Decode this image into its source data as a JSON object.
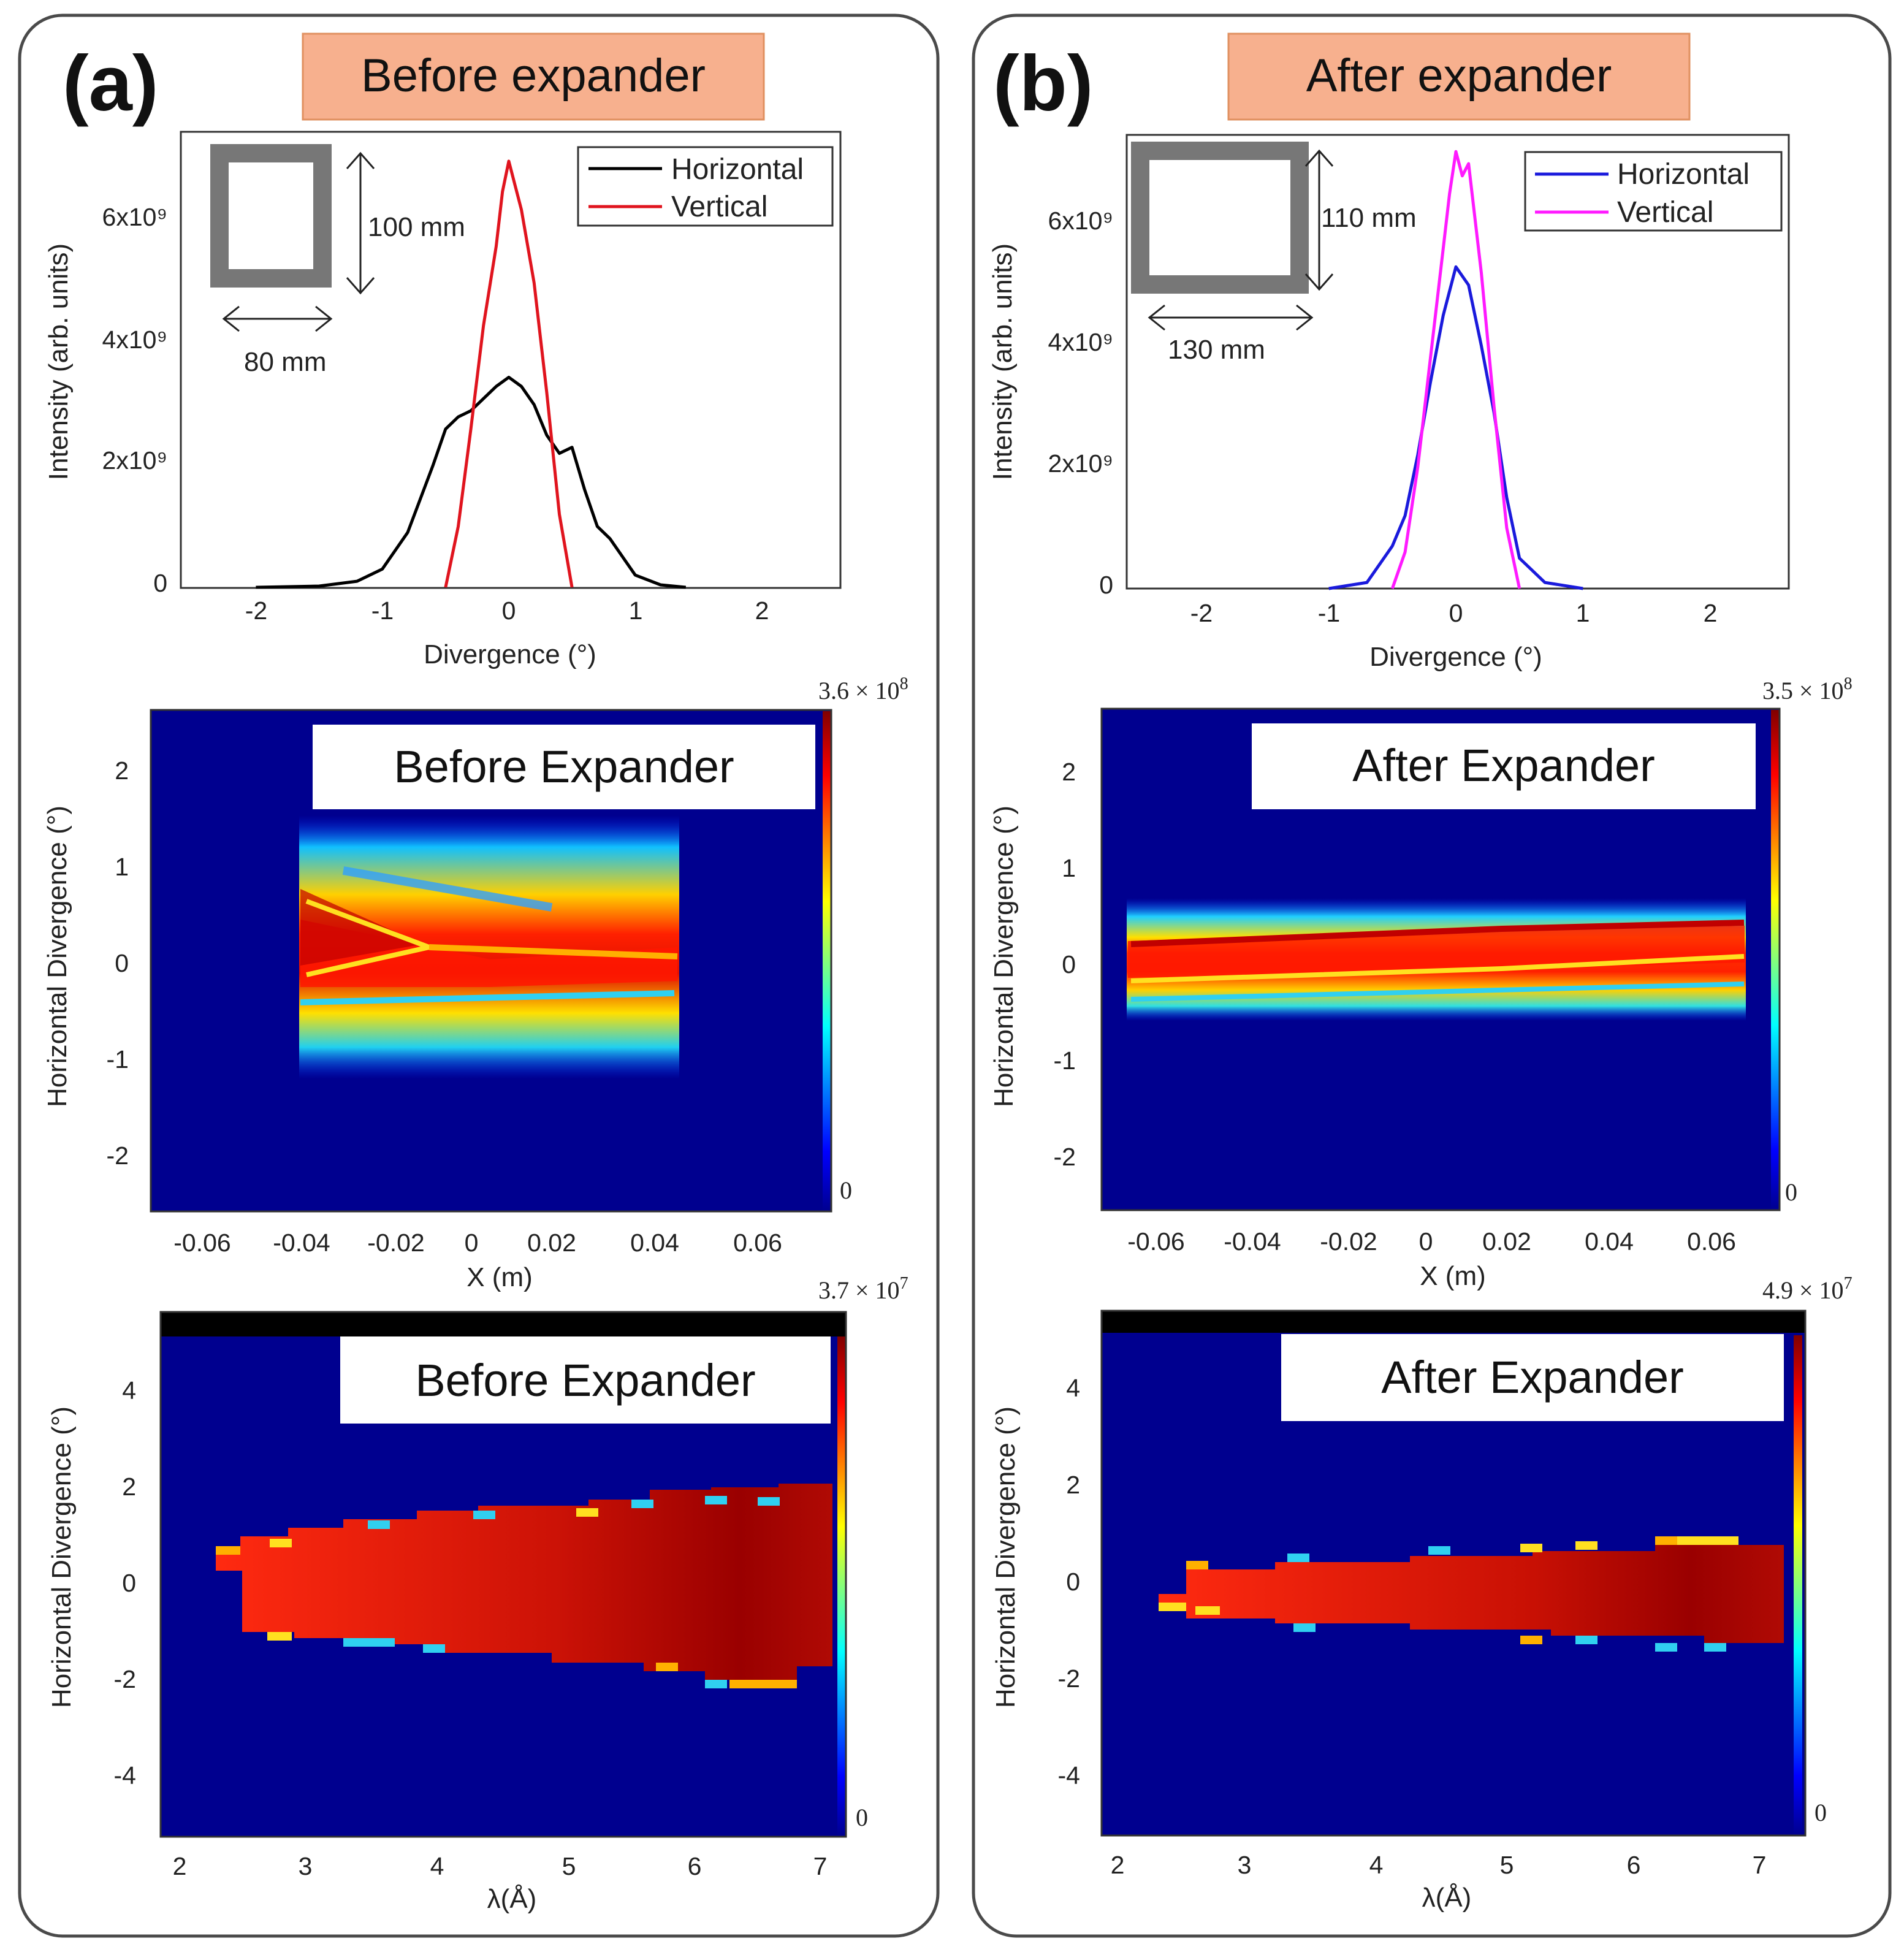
{
  "panels": [
    {
      "letter": "(a)",
      "title": "Before expander",
      "profile": {
        "legend": [
          {
            "label": "Horizontal",
            "color": "#000000"
          },
          {
            "label": "Vertical",
            "color": "#e0141e"
          }
        ],
        "ylabel": "Intensity (arb. units)",
        "xlabel": "Divergence (°)",
        "yticks": [
          "0",
          "2x10⁹",
          "4x10⁹",
          "6x10⁹"
        ],
        "xticks": [
          "-2",
          "-1",
          "0",
          "1",
          "2"
        ],
        "inset_height": "100 mm",
        "inset_width": "80 mm"
      },
      "map_x": {
        "label": "Before Expander",
        "ylabel": "Horizontal Divergence (°)",
        "xlabel": "X (m)",
        "yticks": [
          "-2",
          "-1",
          "0",
          "1",
          "2"
        ],
        "xticks": [
          "-0.06",
          "-0.04",
          "-0.02",
          "0",
          "0.02",
          "0.04",
          "0.06"
        ],
        "cb_max": "3.6 × 10",
        "cb_exp": "8",
        "cb_min": "0"
      },
      "map_lambda": {
        "label": "Before Expander",
        "ylabel": "Horizontal Divergence (°)",
        "xlabel": "λ(Å)",
        "yticks": [
          "-4",
          "-2",
          "0",
          "2",
          "4"
        ],
        "xticks": [
          "2",
          "3",
          "4",
          "5",
          "6",
          "7"
        ],
        "cb_max": "3.7 × 10",
        "cb_exp": "7",
        "cb_min": "0"
      }
    },
    {
      "letter": "(b)",
      "title": "After expander",
      "profile": {
        "legend": [
          {
            "label": "Horizontal",
            "color": "#1a1adc"
          },
          {
            "label": "Vertical",
            "color": "#ff1aff"
          }
        ],
        "ylabel": "Intensity (arb. units)",
        "xlabel": "Divergence (°)",
        "yticks": [
          "0",
          "2x10⁹",
          "4x10⁹",
          "6x10⁹"
        ],
        "xticks": [
          "-2",
          "-1",
          "0",
          "1",
          "2"
        ],
        "inset_height": "110 mm",
        "inset_width": "130 mm"
      },
      "map_x": {
        "label": "After Expander",
        "ylabel": "Horizontal Divergence (°)",
        "xlabel": "X (m)",
        "yticks": [
          "-2",
          "-1",
          "0",
          "1",
          "2"
        ],
        "xticks": [
          "-0.06",
          "-0.04",
          "-0.02",
          "0",
          "0.02",
          "0.04",
          "0.06"
        ],
        "cb_max": "3.5 × 10",
        "cb_exp": "8",
        "cb_min": "0"
      },
      "map_lambda": {
        "label": "After Expander",
        "ylabel": "Horizontal Divergence (°)",
        "xlabel": "λ(Å)",
        "yticks": [
          "-4",
          "-2",
          "0",
          "2",
          "4"
        ],
        "xticks": [
          "2",
          "3",
          "4",
          "5",
          "6",
          "7"
        ],
        "cb_max": "4.9 × 10",
        "cb_exp": "7",
        "cb_min": "0"
      }
    }
  ],
  "chart_data": [
    {
      "type": "line",
      "title": "Before expander",
      "xlabel": "Divergence (°)",
      "ylabel": "Intensity (arb. units)",
      "xlim": [
        -2.5,
        2.6
      ],
      "ylim": [
        0,
        7300000000.0
      ],
      "series": [
        {
          "name": "Horizontal",
          "x": [
            -2.0,
            -1.5,
            -1.2,
            -1.0,
            -0.8,
            -0.6,
            -0.5,
            -0.4,
            -0.3,
            -0.2,
            -0.1,
            0.0,
            0.1,
            0.2,
            0.3,
            0.4,
            0.5,
            0.6,
            0.7,
            0.8,
            1.0,
            1.2,
            1.4
          ],
          "y": [
            0,
            20000000.0,
            100000000.0,
            300000000.0,
            900000000.0,
            2000000000.0,
            2600000000.0,
            2800000000.0,
            2900000000.0,
            3100000000.0,
            3300000000.0,
            3450000000.0,
            3300000000.0,
            3000000000.0,
            2500000000.0,
            2200000000.0,
            2300000000.0,
            1600000000.0,
            1000000000.0,
            800000000.0,
            200000000.0,
            40000000.0,
            0
          ]
        },
        {
          "name": "Vertical",
          "x": [
            -0.5,
            -0.4,
            -0.3,
            -0.2,
            -0.1,
            -0.05,
            0.0,
            0.05,
            0.1,
            0.2,
            0.3,
            0.4,
            0.5
          ],
          "y": [
            0,
            1000000000.0,
            2600000000.0,
            4300000000.0,
            5600000000.0,
            6500000000.0,
            7000000000.0,
            6600000000.0,
            6200000000.0,
            5000000000.0,
            3200000000.0,
            1200000000.0,
            0
          ]
        }
      ]
    },
    {
      "type": "heatmap",
      "title": "Before Expander",
      "xlabel": "X (m)",
      "ylabel": "Horizontal Divergence (°)",
      "xlim": [
        -0.07,
        0.073
      ],
      "ylim": [
        -2.6,
        2.6
      ],
      "colorbar": {
        "min": 0,
        "max": 360000000.0
      },
      "beam": {
        "x_range": [
          -0.04,
          0.045
        ],
        "y_range": [
          -1.0,
          1.4
        ],
        "core_y": [
          -0.4,
          0.4
        ]
      }
    },
    {
      "type": "heatmap",
      "title": "Before Expander",
      "xlabel": "λ(Å)",
      "ylabel": "Horizontal Divergence (°)",
      "xlim": [
        1.8,
        7.1
      ],
      "ylim": [
        -5.2,
        5.2
      ],
      "colorbar": {
        "min": 0,
        "max": 37000000.0
      },
      "beam": {
        "lambda_range": [
          2.3,
          7.1
        ],
        "upper_edge": [
          0.7,
          1.5
        ],
        "lower_edge": [
          -0.9,
          -1.8
        ]
      }
    },
    {
      "type": "line",
      "title": "After expander",
      "xlabel": "Divergence (°)",
      "ylabel": "Intensity (arb. units)",
      "xlim": [
        -2.5,
        2.6
      ],
      "ylim": [
        0,
        7300000000.0
      ],
      "series": [
        {
          "name": "Horizontal",
          "x": [
            -1.0,
            -0.7,
            -0.5,
            -0.4,
            -0.3,
            -0.2,
            -0.1,
            0.0,
            0.1,
            0.2,
            0.3,
            0.4,
            0.5,
            0.7,
            1.0
          ],
          "y": [
            0,
            100000000.0,
            700000000.0,
            1200000000.0,
            2200000000.0,
            3400000000.0,
            4500000000.0,
            5300000000.0,
            5000000000.0,
            4000000000.0,
            2900000000.0,
            1500000000.0,
            500000000.0,
            100000000.0,
            0
          ]
        },
        {
          "name": "Vertical",
          "x": [
            -0.5,
            -0.4,
            -0.3,
            -0.2,
            -0.1,
            -0.05,
            0.0,
            0.05,
            0.1,
            0.2,
            0.3,
            0.4,
            0.5
          ],
          "y": [
            0,
            600000000.0,
            2000000000.0,
            3800000000.0,
            5600000000.0,
            6500000000.0,
            7200000000.0,
            6800000000.0,
            7000000000.0,
            5200000000.0,
            3000000000.0,
            1000000000.0,
            0
          ]
        }
      ]
    },
    {
      "type": "heatmap",
      "title": "After Expander",
      "xlabel": "X (m)",
      "ylabel": "Horizontal Divergence (°)",
      "xlim": [
        -0.07,
        0.073
      ],
      "ylim": [
        -2.6,
        2.6
      ],
      "colorbar": {
        "min": 0,
        "max": 350000000.0
      },
      "beam": {
        "x_range": [
          -0.065,
          0.065
        ],
        "y_range": [
          -0.6,
          0.7
        ],
        "core_y": [
          -0.25,
          0.35
        ]
      }
    },
    {
      "type": "heatmap",
      "title": "After Expander",
      "xlabel": "λ(Å)",
      "ylabel": "Horizontal Divergence (°)",
      "xlim": [
        1.8,
        7.3
      ],
      "ylim": [
        -5.2,
        5.2
      ],
      "colorbar": {
        "min": 0,
        "max": 49000000.0
      },
      "beam": {
        "lambda_range": [
          2.35,
          7.2
        ],
        "upper_edge": [
          0.5,
          1.0
        ],
        "lower_edge": [
          -0.5,
          -1.0
        ]
      }
    }
  ]
}
